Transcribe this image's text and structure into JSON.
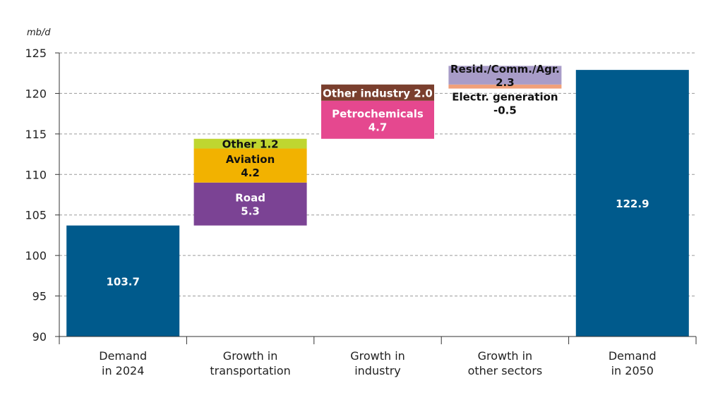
{
  "chart_data": {
    "type": "bar",
    "subtype": "waterfall",
    "unit_label": "mb/d",
    "ylim": [
      90,
      125
    ],
    "yticks": [
      90,
      95,
      100,
      105,
      110,
      115,
      120,
      125
    ],
    "grid": true,
    "categories": [
      [
        "Demand",
        "in 2024"
      ],
      [
        "Growth in",
        "transportation"
      ],
      [
        "Growth in",
        "industry"
      ],
      [
        "Growth in",
        "other sectors"
      ],
      [
        "Demand",
        "in 2050"
      ]
    ],
    "totals": [
      {
        "category_index": 0,
        "value": 103.7,
        "label": "103.7",
        "color": "#005a8c"
      },
      {
        "category_index": 4,
        "value": 122.9,
        "label": "122.9",
        "color": "#005a8c"
      }
    ],
    "segments": [
      {
        "category_index": 1,
        "name": "Road",
        "base": 103.7,
        "value": 5.3,
        "label_lines": [
          "Road",
          "5.3"
        ],
        "color": "#7b4394",
        "text_color": "#ffffff",
        "label_position": "inside"
      },
      {
        "category_index": 1,
        "name": "Aviation",
        "base": 109.0,
        "value": 4.2,
        "label_lines": [
          "Aviation",
          "4.2"
        ],
        "color": "#f2b200",
        "text_color": "#111111",
        "label_position": "inside"
      },
      {
        "category_index": 1,
        "name": "Other",
        "base": 113.2,
        "value": 1.2,
        "label_lines": [
          "Other 1.2"
        ],
        "color": "#bfd630",
        "text_color": "#111111",
        "label_position": "inside"
      },
      {
        "category_index": 2,
        "name": "Petrochemicals",
        "base": 114.4,
        "value": 4.7,
        "label_lines": [
          "Petrochemicals",
          "4.7"
        ],
        "color": "#e5488f",
        "text_color": "#ffffff",
        "label_position": "inside"
      },
      {
        "category_index": 2,
        "name": "Other industry",
        "base": 119.1,
        "value": 2.0,
        "label_lines": [
          "Other industry 2.0"
        ],
        "color": "#7a3f2e",
        "text_color": "#ffffff",
        "label_position": "inside"
      },
      {
        "category_index": 3,
        "name": "Electr. generation",
        "base": 121.1,
        "value": -0.5,
        "label_lines": [
          "Electr. generation",
          "-0.5"
        ],
        "color": "#f0a07a",
        "text_color": "#111111",
        "label_position": "below"
      },
      {
        "category_index": 3,
        "name": "Resid./Comm./Agr.",
        "base": 121.1,
        "value": 2.3,
        "label_lines": [
          "Resid./Comm./Agr.",
          "2.3"
        ],
        "color": "#a89cc8",
        "text_color": "#111111",
        "label_position": "inside"
      }
    ]
  }
}
